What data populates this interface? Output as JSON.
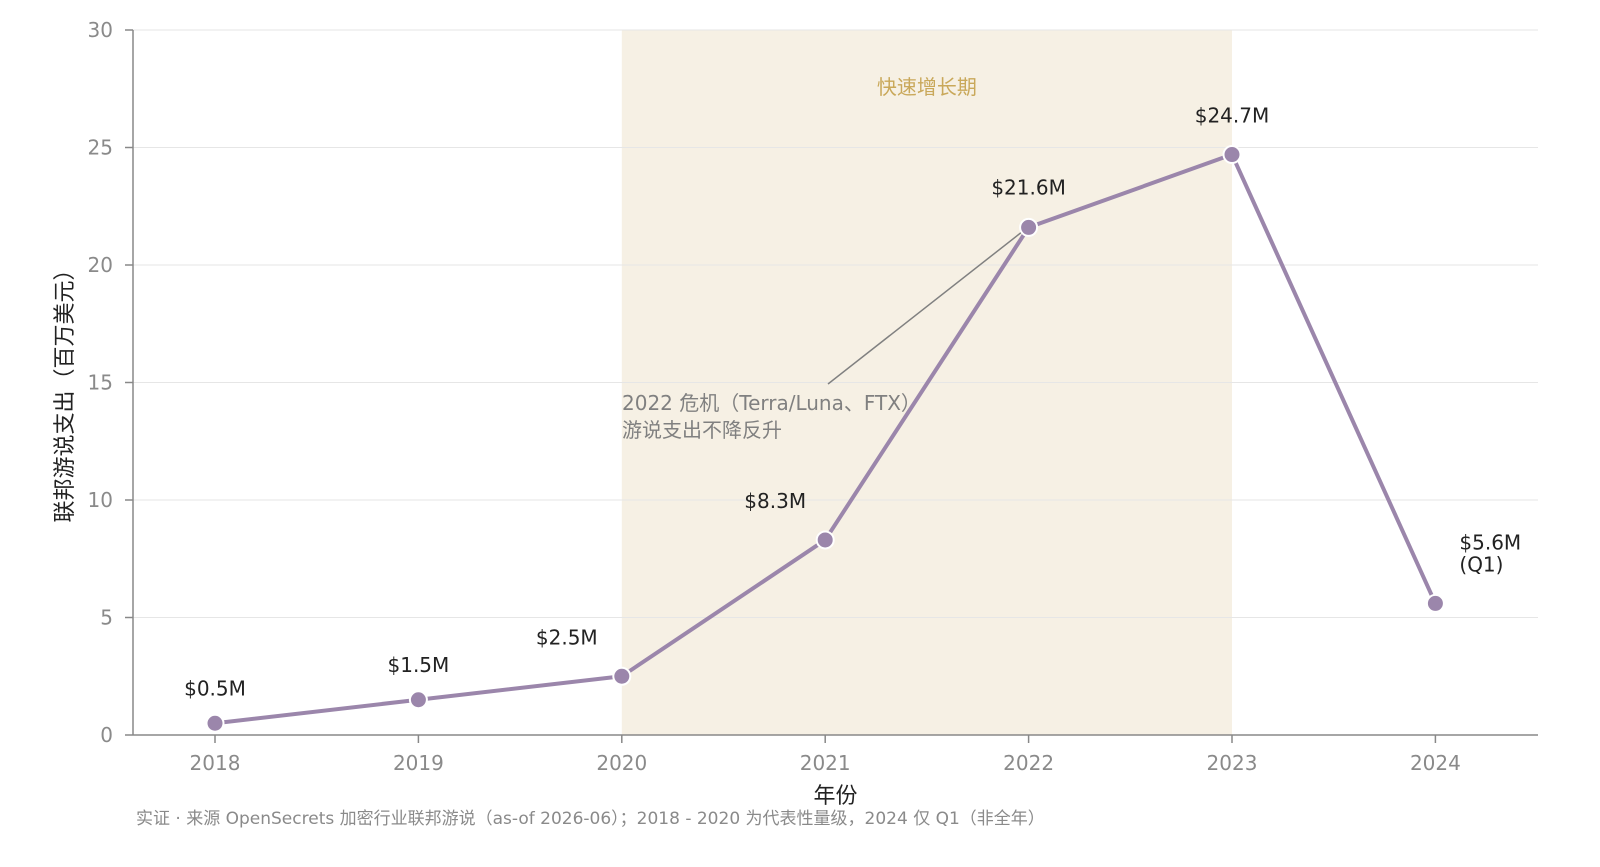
{
  "chart_data": {
    "type": "line",
    "categories": [
      "2018",
      "2019",
      "2020",
      "2021",
      "2022",
      "2023",
      "2024"
    ],
    "series": [
      {
        "values": [
          0.5,
          1.5,
          2.5,
          8.3,
          21.6,
          24.7,
          5.6
        ],
        "labels": [
          "$0.5M",
          "$1.5M",
          "$2.5M",
          "$8.3M",
          "$21.6M",
          "$24.7M",
          "$5.6M\n(Q1)"
        ]
      }
    ],
    "xlabel": "年份",
    "ylabel": "联邦游说支出（百万美元）",
    "ylim": [
      0,
      30
    ],
    "yticks": [
      0,
      5,
      10,
      15,
      20,
      25,
      30
    ],
    "grid": "horizontal",
    "band": {
      "from": "2020",
      "to": "2023",
      "label": "快速增长期"
    },
    "annotation": {
      "target": "2022",
      "lines": [
        "2022 危机（Terra/Luna、FTX）",
        "游说支出不降反升"
      ]
    },
    "footnote": "实证 · 来源 OpenSecrets 加密行业联邦游说（as-of 2026-06）；2018 - 2020 为代表性量级，2024 仅 Q1（非全年）"
  },
  "colors": {
    "line": "#9b86ab",
    "band_fill": "#f6f0e4",
    "band_label": "#c9a85a",
    "grid": "#e6e6e6",
    "axis": "#888888",
    "annotation": "#808080"
  }
}
